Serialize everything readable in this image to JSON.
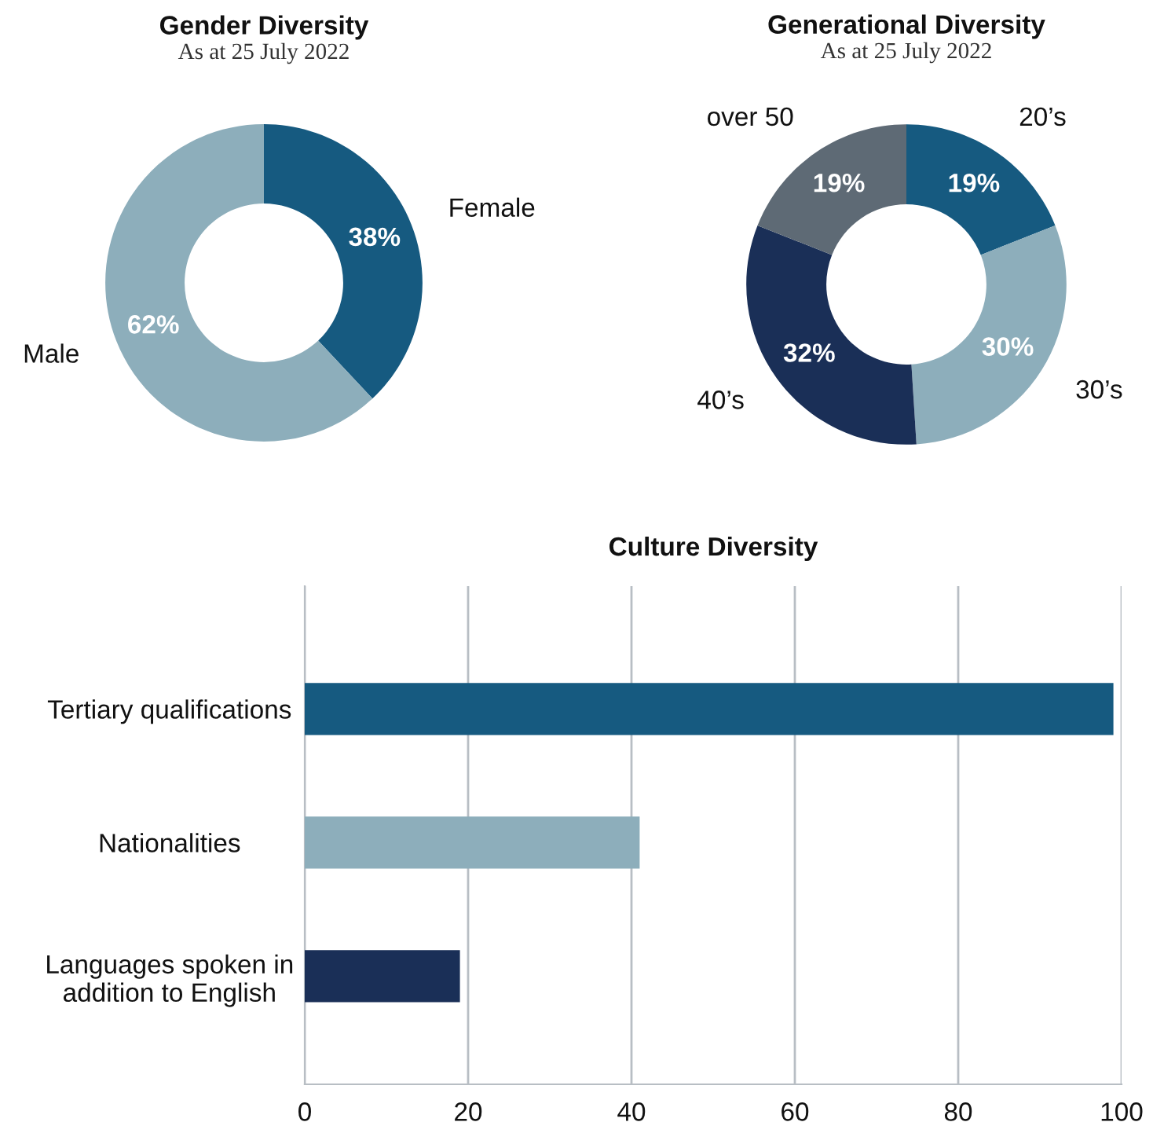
{
  "chart_data": [
    {
      "type": "donut",
      "title": "Gender Diversity",
      "subtitle": "As at 25 July 2022",
      "categories": [
        "Female",
        "Male"
      ],
      "values": [
        38,
        62
      ],
      "colors": [
        "#165a80",
        "#8daebb"
      ],
      "value_labels": [
        "38%",
        "62%"
      ]
    },
    {
      "type": "donut",
      "title": "Generational Diversity",
      "subtitle": "As at 25 July 2022",
      "categories": [
        "20’s",
        "30’s",
        "40’s",
        "over 50"
      ],
      "values": [
        19,
        30,
        32,
        19
      ],
      "colors": [
        "#165a80",
        "#8daebb",
        "#1a2f57",
        "#5e6a75"
      ],
      "value_labels": [
        "19%",
        "30%",
        "32%",
        "19%"
      ]
    },
    {
      "type": "bar",
      "orientation": "horizontal",
      "title": "Culture Diversity",
      "categories": [
        "Tertiary qualifications",
        "Nationalities",
        "Languages spoken in addition to English"
      ],
      "values": [
        99,
        41,
        19
      ],
      "colors": [
        "#165a80",
        "#8daebb",
        "#1a2f57"
      ],
      "xlim": [
        0,
        100
      ],
      "xticks": [
        0,
        20,
        40,
        60,
        80,
        100
      ],
      "grid": "x"
    }
  ]
}
